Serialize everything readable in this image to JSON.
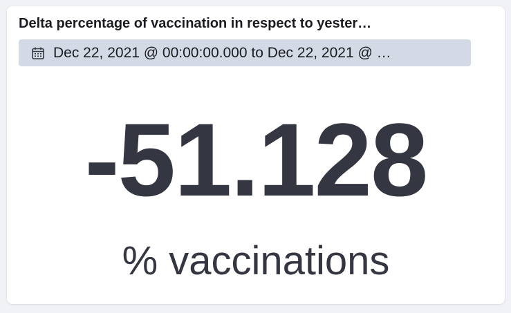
{
  "panel": {
    "title": "Delta percentage of vaccination in respect to yester…",
    "time_range": "Dec 22, 2021 @ 00:00:00.000 to Dec 22, 2021 @ …",
    "time_icon": "calendar-icon"
  },
  "metric": {
    "value": "-51.128",
    "label": "% vaccinations"
  },
  "colors": {
    "background": "#f1f2f6",
    "panel": "#ffffff",
    "badge": "#d3dae6",
    "text": "#343741"
  }
}
